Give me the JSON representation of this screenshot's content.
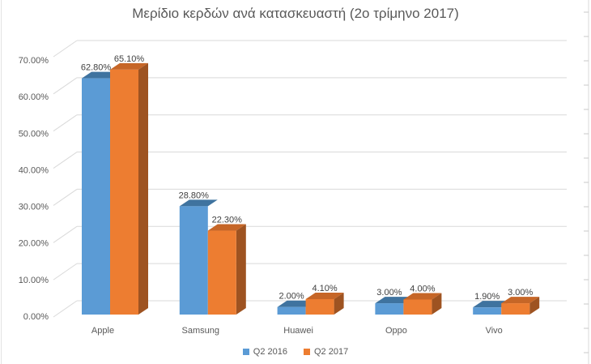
{
  "chart_data": {
    "type": "bar",
    "projection": "3d",
    "title": "Μερίδιο κερδών ανά κατασκευαστή (2ο τρίμηνο 2017)",
    "categories": [
      "Apple",
      "Samsung",
      "Huawei",
      "Oppo",
      "Vivo"
    ],
    "series": [
      {
        "name": "Q2 2016",
        "color": "#5B9BD5",
        "color_top": "#3F739F",
        "color_side": "#41719C",
        "values": [
          62.8,
          28.8,
          2.0,
          3.0,
          1.9
        ],
        "data_labels": [
          "62.80%",
          "28.80%",
          "2.00%",
          "3.00%",
          "1.90%"
        ]
      },
      {
        "name": "Q2 2017",
        "color": "#ED7D31",
        "color_top": "#C66627",
        "color_side": "#9E5321",
        "values": [
          65.1,
          22.3,
          4.1,
          4.0,
          3.0
        ],
        "data_labels": [
          "65.10%",
          "22.30%",
          "4.10%",
          "4.00%",
          "3.00%"
        ]
      }
    ],
    "y_axis": {
      "min": 0,
      "max": 70,
      "tick_step": 10,
      "tick_labels": [
        "0.00%",
        "10.00%",
        "20.00%",
        "30.00%",
        "40.00%",
        "50.00%",
        "60.00%",
        "70.00%"
      ]
    },
    "legend": {
      "position": "bottom",
      "entries": [
        "Q2 2016",
        "Q2 2017"
      ]
    },
    "style": {
      "gridline_color": "#D9D9D9",
      "title_color": "#595959",
      "axis_text_color": "#595959",
      "data_label_color": "#404040",
      "background": "#FFFFFF"
    },
    "edge_artifacts": {
      "right_cell_gridline": true,
      "left_cell_gridline": true,
      "right_tick_spacing_px": 30
    }
  }
}
